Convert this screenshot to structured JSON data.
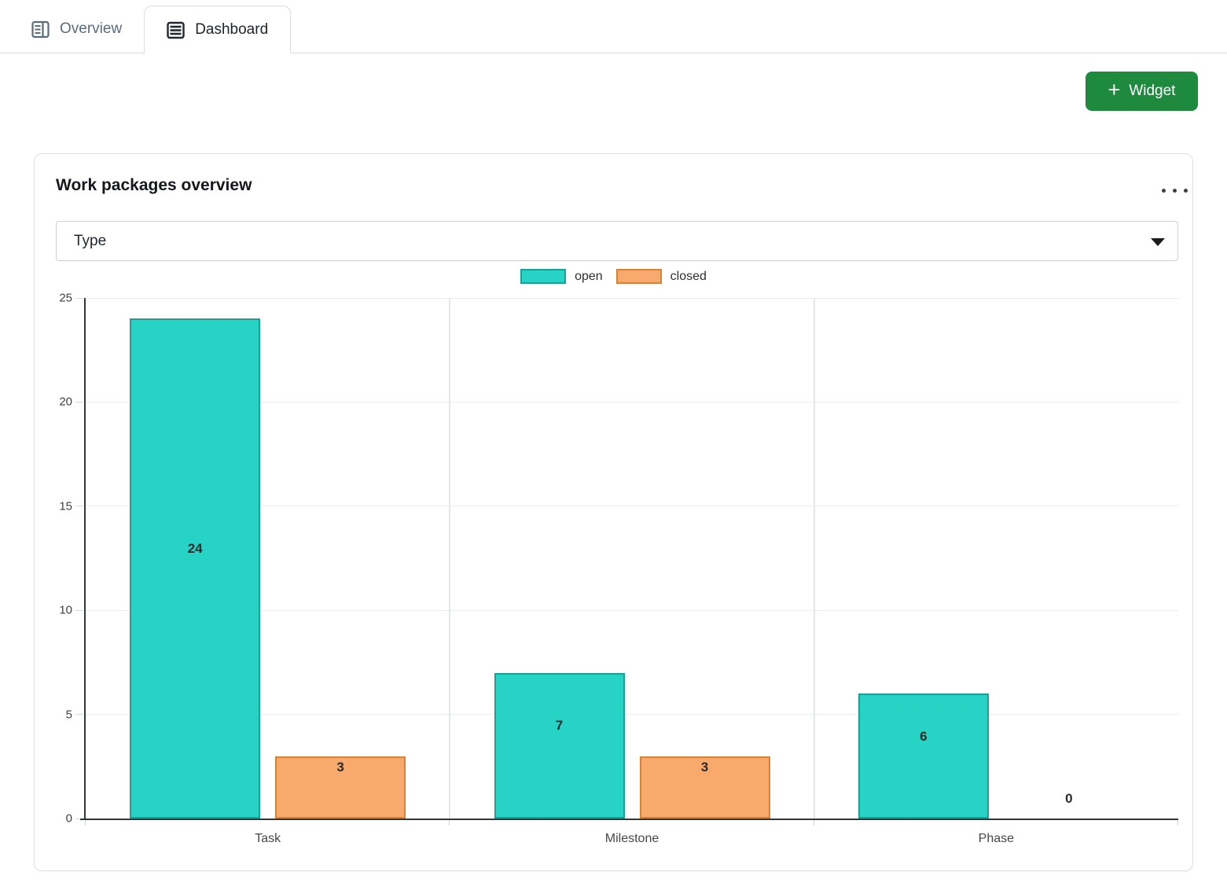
{
  "tabs": [
    {
      "label": "Overview",
      "active": false
    },
    {
      "label": "Dashboard",
      "active": true
    }
  ],
  "toolbar": {
    "add_widget_plus": "+",
    "add_widget_label": "Widget"
  },
  "widget": {
    "title": "Work packages overview",
    "menu_icon": "ellipsis-menu",
    "groupby_select": {
      "value": "Type"
    }
  },
  "colors": {
    "button_green": "#1e8a3e",
    "open_fill": "#26d3c5",
    "open_border": "#1f9e94",
    "closed_fill": "#f8a96c",
    "closed_border": "#d6823b"
  },
  "chart_data": {
    "type": "bar",
    "title": "Work packages overview",
    "categories": [
      "Task",
      "Milestone",
      "Phase"
    ],
    "series": [
      {
        "name": "open",
        "color": "#26d3c5",
        "border_color": "#1f9e94",
        "values": [
          24,
          7,
          6
        ]
      },
      {
        "name": "closed",
        "color": "#f8a96c",
        "border_color": "#d6823b",
        "values": [
          3,
          3,
          0
        ]
      }
    ],
    "ylim": [
      0,
      25
    ],
    "yticks": [
      0,
      5,
      10,
      15,
      20,
      25
    ],
    "xlabel": "",
    "ylabel": "",
    "legend_position": "top",
    "grid": true,
    "value_labels": true
  }
}
